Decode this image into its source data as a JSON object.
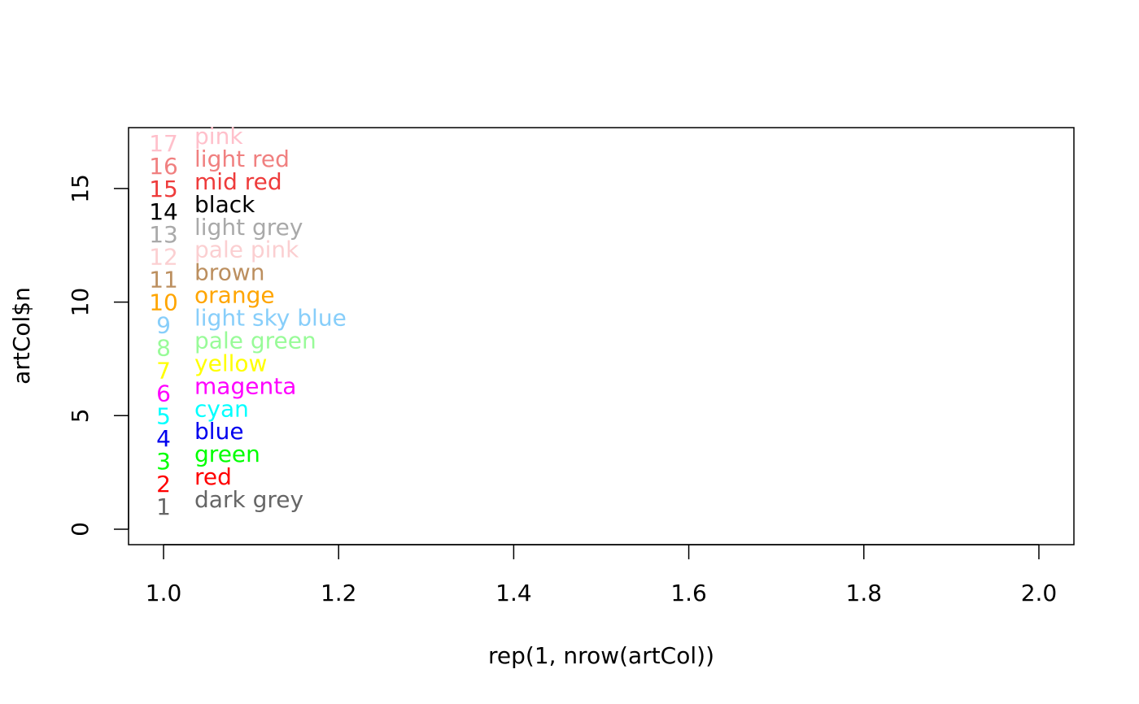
{
  "chart_data": {
    "type": "scatter",
    "title": "",
    "xlabel": "rep(1, nrow(artCol))",
    "ylabel": "artCol$n",
    "xlim": [
      0.96,
      2.04
    ],
    "ylim": [
      -0.68,
      17.68
    ],
    "x_ticks": [
      1.0,
      1.2,
      1.4,
      1.6,
      1.8,
      2.0
    ],
    "x_tick_labels": [
      "1.0",
      "1.2",
      "1.4",
      "1.6",
      "1.8",
      "2.0"
    ],
    "y_ticks": [
      0,
      5,
      10,
      15
    ],
    "y_tick_labels": [
      "0",
      "5",
      "10",
      "15"
    ],
    "grid": false,
    "legend": "none",
    "points": [
      {
        "x": 1,
        "y": 1,
        "label": "1",
        "name": "dark grey",
        "color": "#666666"
      },
      {
        "x": 1,
        "y": 2,
        "label": "2",
        "name": "red",
        "color": "#ff0000"
      },
      {
        "x": 1,
        "y": 3,
        "label": "3",
        "name": "green",
        "color": "#00ff00"
      },
      {
        "x": 1,
        "y": 4,
        "label": "4",
        "name": "blue",
        "color": "#0000ee"
      },
      {
        "x": 1,
        "y": 5,
        "label": "5",
        "name": "cyan",
        "color": "#00ffff"
      },
      {
        "x": 1,
        "y": 6,
        "label": "6",
        "name": "magenta",
        "color": "#ff00ff"
      },
      {
        "x": 1,
        "y": 7,
        "label": "7",
        "name": "yellow",
        "color": "#ffff00"
      },
      {
        "x": 1,
        "y": 8,
        "label": "8",
        "name": "pale green",
        "color": "#98fb98"
      },
      {
        "x": 1,
        "y": 9,
        "label": "9",
        "name": "light sky blue",
        "color": "#87cefa"
      },
      {
        "x": 1,
        "y": 10,
        "label": "10",
        "name": "orange",
        "color": "#ffa500"
      },
      {
        "x": 1,
        "y": 11,
        "label": "11",
        "name": "brown",
        "color": "#bc8f5f"
      },
      {
        "x": 1,
        "y": 12,
        "label": "12",
        "name": "pale pink",
        "color": "#fbcfd1"
      },
      {
        "x": 1,
        "y": 13,
        "label": "13",
        "name": "light grey",
        "color": "#a9a9a9"
      },
      {
        "x": 1,
        "y": 14,
        "label": "14",
        "name": "black",
        "color": "#000000"
      },
      {
        "x": 1,
        "y": 15,
        "label": "15",
        "name": "mid red",
        "color": "#ee3b3b"
      },
      {
        "x": 1,
        "y": 16,
        "label": "16",
        "name": "light red",
        "color": "#f08080"
      },
      {
        "x": 1,
        "y": 17,
        "label": "17",
        "name": "pink",
        "color": "#ffc0cb"
      }
    ]
  }
}
